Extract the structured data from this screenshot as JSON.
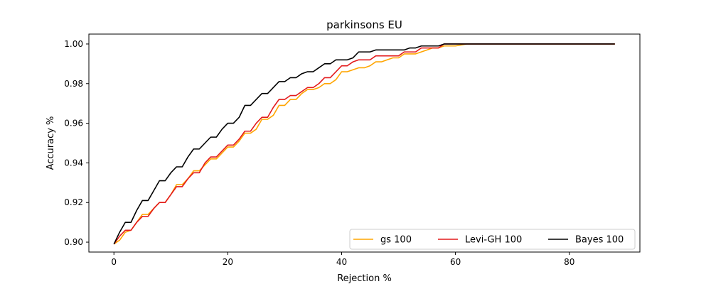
{
  "chart_data": {
    "type": "line",
    "title": "parkinsons EU",
    "xlabel": "Rejection %",
    "ylabel": "Accuracy %",
    "xlim": [
      -4.4,
      92.4
    ],
    "ylim": [
      0.895,
      1.005
    ],
    "xticks": [
      0,
      20,
      40,
      60,
      80
    ],
    "yticks": [
      0.9,
      0.92,
      0.94,
      0.96,
      0.98,
      1.0
    ],
    "xtick_labels": [
      "0",
      "20",
      "40",
      "60",
      "80"
    ],
    "ytick_labels": [
      "0.90",
      "0.92",
      "0.94",
      "0.96",
      "0.98",
      "1.00"
    ],
    "grid": false,
    "legend_position": "lower-right",
    "series": [
      {
        "name": "gs 100",
        "color": "#ffa500",
        "x": [
          0,
          1,
          2,
          3,
          4,
          5,
          6,
          7,
          8,
          9,
          10,
          11,
          12,
          13,
          14,
          15,
          16,
          17,
          18,
          19,
          20,
          21,
          22,
          23,
          24,
          25,
          26,
          27,
          28,
          29,
          30,
          31,
          32,
          33,
          34,
          35,
          36,
          37,
          38,
          39,
          40,
          41,
          42,
          43,
          44,
          45,
          46,
          47,
          48,
          49,
          50,
          51,
          52,
          53,
          54,
          55,
          56,
          57,
          58,
          59,
          60,
          61,
          62,
          63,
          64,
          65,
          70,
          75,
          80,
          85,
          88
        ],
        "y": [
          0.899,
          0.901,
          0.905,
          0.906,
          0.91,
          0.914,
          0.914,
          0.917,
          0.92,
          0.92,
          0.924,
          0.929,
          0.929,
          0.932,
          0.936,
          0.936,
          0.939,
          0.942,
          0.942,
          0.945,
          0.948,
          0.948,
          0.951,
          0.955,
          0.955,
          0.957,
          0.962,
          0.962,
          0.964,
          0.969,
          0.969,
          0.972,
          0.972,
          0.975,
          0.977,
          0.977,
          0.978,
          0.98,
          0.98,
          0.982,
          0.986,
          0.986,
          0.987,
          0.988,
          0.988,
          0.989,
          0.991,
          0.991,
          0.992,
          0.993,
          0.993,
          0.995,
          0.995,
          0.995,
          0.996,
          0.997,
          0.998,
          0.998,
          0.999,
          0.999,
          0.999,
          0.9995,
          1.0,
          1.0,
          1.0,
          1.0,
          1.0,
          1.0,
          1.0,
          1.0,
          1.0
        ]
      },
      {
        "name": "Levi-GH 100",
        "color": "#e31a1c",
        "x": [
          0,
          1,
          2,
          3,
          4,
          5,
          6,
          7,
          8,
          9,
          10,
          11,
          12,
          13,
          14,
          15,
          16,
          17,
          18,
          19,
          20,
          21,
          22,
          23,
          24,
          25,
          26,
          27,
          28,
          29,
          30,
          31,
          32,
          33,
          34,
          35,
          36,
          37,
          38,
          39,
          40,
          41,
          42,
          43,
          44,
          45,
          46,
          47,
          48,
          49,
          50,
          51,
          52,
          53,
          54,
          55,
          56,
          57,
          58,
          59,
          60,
          61,
          62,
          63,
          64,
          65,
          70,
          75,
          80,
          85,
          88
        ],
        "y": [
          0.899,
          0.903,
          0.906,
          0.906,
          0.91,
          0.913,
          0.913,
          0.917,
          0.92,
          0.92,
          0.924,
          0.928,
          0.928,
          0.932,
          0.935,
          0.935,
          0.94,
          0.943,
          0.943,
          0.946,
          0.949,
          0.949,
          0.952,
          0.956,
          0.956,
          0.96,
          0.963,
          0.963,
          0.968,
          0.972,
          0.972,
          0.974,
          0.974,
          0.976,
          0.978,
          0.978,
          0.98,
          0.983,
          0.983,
          0.986,
          0.989,
          0.989,
          0.991,
          0.992,
          0.992,
          0.992,
          0.994,
          0.994,
          0.994,
          0.994,
          0.994,
          0.996,
          0.996,
          0.996,
          0.998,
          0.998,
          0.998,
          0.998,
          1.0,
          1.0,
          1.0,
          1.0,
          1.0,
          1.0,
          1.0,
          1.0,
          1.0,
          1.0,
          1.0,
          1.0,
          1.0
        ]
      },
      {
        "name": "Bayes 100",
        "color": "#000000",
        "x": [
          0,
          1,
          2,
          3,
          4,
          5,
          6,
          7,
          8,
          9,
          10,
          11,
          12,
          13,
          14,
          15,
          16,
          17,
          18,
          19,
          20,
          21,
          22,
          23,
          24,
          25,
          26,
          27,
          28,
          29,
          30,
          31,
          32,
          33,
          34,
          35,
          36,
          37,
          38,
          39,
          40,
          41,
          42,
          43,
          44,
          45,
          46,
          47,
          48,
          49,
          50,
          51,
          52,
          53,
          54,
          55,
          56,
          57,
          58,
          59,
          60,
          61,
          62,
          63,
          64,
          65,
          70,
          75,
          80,
          85,
          88
        ],
        "y": [
          0.899,
          0.905,
          0.91,
          0.91,
          0.916,
          0.921,
          0.921,
          0.926,
          0.931,
          0.931,
          0.935,
          0.938,
          0.938,
          0.943,
          0.947,
          0.947,
          0.95,
          0.953,
          0.953,
          0.957,
          0.96,
          0.96,
          0.963,
          0.969,
          0.969,
          0.972,
          0.975,
          0.975,
          0.978,
          0.981,
          0.981,
          0.983,
          0.983,
          0.985,
          0.986,
          0.986,
          0.988,
          0.99,
          0.99,
          0.992,
          0.992,
          0.992,
          0.993,
          0.996,
          0.996,
          0.996,
          0.997,
          0.997,
          0.997,
          0.997,
          0.997,
          0.997,
          0.998,
          0.998,
          0.999,
          0.999,
          0.999,
          0.999,
          1.0,
          1.0,
          1.0,
          1.0,
          1.0,
          1.0,
          1.0,
          1.0,
          1.0,
          1.0,
          1.0,
          1.0,
          1.0
        ]
      }
    ]
  }
}
